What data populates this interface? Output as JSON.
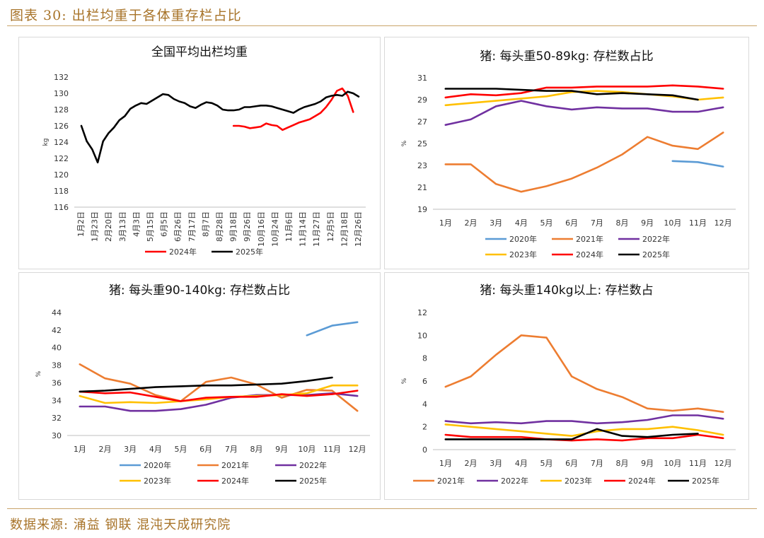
{
  "figure_title": "图表 30:  出栏均重于各体重存栏占比",
  "source": "数据来源:  涌益  钢联  混沌天成研究院",
  "colors": {
    "2020年": "#5b9bd5",
    "2021年": "#ed7d31",
    "2022年": "#7030a0",
    "2023年": "#ffc000",
    "2024年": "#ff0000",
    "2025年": "#000000"
  },
  "chart_data": [
    {
      "id": "chart1",
      "type": "line",
      "title": "全国平均出栏均重",
      "ylabel": "kg",
      "ylim": [
        116,
        132
      ],
      "yticks": [
        116,
        118,
        120,
        122,
        124,
        126,
        128,
        130,
        132
      ],
      "x_count": 52,
      "x_labels": [
        "1月2日",
        "1月23日",
        "2月20日",
        "3月13日",
        "4月3日",
        "5月15日",
        "6月5日",
        "6月26日",
        "7月17日",
        "8月7日",
        "8月28日",
        "9月18日",
        "9月26日",
        "10月16日",
        "10月24日",
        "11月6日",
        "11月14日",
        "11月27日",
        "12月5日",
        "12月18日",
        "12月26日"
      ],
      "x_label_positions": [
        0,
        2.55,
        5.1,
        7.65,
        10.2,
        12.75,
        15.3,
        17.85,
        20.4,
        22.95,
        25.5,
        28.05,
        30.6,
        33.15,
        35.7,
        38.25,
        40.8,
        43.35,
        45.9,
        48.45,
        51
      ],
      "series": [
        {
          "name": "2024年",
          "x_start": 28,
          "values": [
            126.0,
            126.0,
            125.9,
            125.7,
            125.8,
            125.9,
            126.3,
            126.1,
            126.0,
            125.5,
            125.8,
            126.1,
            126.4,
            126.6,
            126.8,
            127.2,
            127.6,
            128.3,
            129.2,
            130.3,
            130.6,
            129.7,
            127.7
          ]
        },
        {
          "name": "2025年",
          "x_start": 0,
          "values": [
            126.0,
            124.1,
            123.1,
            121.5,
            124.1,
            125.1,
            125.8,
            126.7,
            127.2,
            128.1,
            128.5,
            128.8,
            128.7,
            129.1,
            129.5,
            129.9,
            129.8,
            129.3,
            129.0,
            128.8,
            128.4,
            128.2,
            128.6,
            128.9,
            128.8,
            128.5,
            128.0,
            127.9,
            127.9,
            128.0,
            128.3,
            128.3,
            128.4,
            128.5,
            128.5,
            128.4,
            128.2,
            128.0,
            127.8,
            127.6,
            128.0,
            128.3,
            128.5,
            128.7,
            129.0,
            129.5,
            129.7,
            129.8,
            129.7,
            130.2,
            130.0,
            129.6
          ]
        }
      ],
      "legend": [
        "2024年",
        "2025年"
      ]
    },
    {
      "id": "chart2",
      "type": "line",
      "title": "猪:  每头重50-89kg:  存栏数占比",
      "ylabel": "%",
      "ylim": [
        19,
        31
      ],
      "yticks": [
        19,
        21,
        23,
        25,
        27,
        29,
        31
      ],
      "categories": [
        "1月",
        "2月",
        "3月",
        "4月",
        "5月",
        "6月",
        "7月",
        "8月",
        "9月",
        "10月",
        "11月",
        "12月"
      ],
      "series": [
        {
          "name": "2020年",
          "values": [
            null,
            null,
            null,
            null,
            null,
            null,
            null,
            null,
            null,
            23.4,
            23.3,
            22.9
          ]
        },
        {
          "name": "2021年",
          "values": [
            23.1,
            23.1,
            21.3,
            20.6,
            21.1,
            21.8,
            22.8,
            24.0,
            25.6,
            24.8,
            24.5,
            26.0
          ]
        },
        {
          "name": "2022年",
          "values": [
            26.7,
            27.2,
            28.4,
            28.9,
            28.4,
            28.1,
            28.3,
            28.2,
            28.2,
            27.9,
            27.9,
            28.3
          ]
        },
        {
          "name": "2023年",
          "values": [
            28.5,
            28.7,
            28.9,
            29.1,
            29.3,
            29.7,
            29.8,
            29.7,
            29.5,
            29.3,
            29.0,
            29.2
          ]
        },
        {
          "name": "2024年",
          "values": [
            29.2,
            29.5,
            29.4,
            29.6,
            30.1,
            30.1,
            30.2,
            30.2,
            30.2,
            30.3,
            30.2,
            30.0
          ]
        },
        {
          "name": "2025年",
          "values": [
            30.0,
            30.0,
            30.0,
            29.9,
            29.8,
            29.8,
            29.5,
            29.6,
            29.5,
            29.4,
            29.0,
            null
          ]
        }
      ],
      "legend": [
        "2020年",
        "2021年",
        "2022年",
        "2023年",
        "2024年",
        "2025年"
      ]
    },
    {
      "id": "chart3",
      "type": "line",
      "title": "猪:  每头重90-140kg:  存栏数占比",
      "ylabel": "%",
      "ylim": [
        30,
        44
      ],
      "yticks": [
        30,
        32,
        34,
        36,
        38,
        40,
        42,
        44
      ],
      "categories": [
        "1月",
        "2月",
        "3月",
        "4月",
        "5月",
        "6月",
        "7月",
        "8月",
        "9月",
        "10月",
        "11月",
        "12月"
      ],
      "series": [
        {
          "name": "2020年",
          "values": [
            null,
            null,
            null,
            null,
            null,
            null,
            null,
            null,
            null,
            41.4,
            42.5,
            42.9
          ]
        },
        {
          "name": "2021年",
          "values": [
            38.1,
            36.5,
            35.9,
            34.6,
            33.9,
            36.1,
            36.6,
            35.8,
            34.3,
            35.2,
            35.1,
            32.8
          ]
        },
        {
          "name": "2022年",
          "values": [
            33.3,
            33.3,
            32.8,
            32.8,
            33.0,
            33.5,
            34.3,
            34.6,
            34.6,
            34.6,
            34.8,
            34.5
          ]
        },
        {
          "name": "2023年",
          "values": [
            34.5,
            33.7,
            33.8,
            33.7,
            33.9,
            34.1,
            34.4,
            34.5,
            34.6,
            34.8,
            35.7,
            35.7
          ]
        },
        {
          "name": "2024年",
          "values": [
            35.0,
            34.8,
            34.9,
            34.4,
            33.9,
            34.3,
            34.4,
            34.4,
            34.7,
            34.5,
            34.7,
            35.1
          ]
        },
        {
          "name": "2025年",
          "values": [
            35.0,
            35.1,
            35.3,
            35.5,
            35.6,
            35.7,
            35.7,
            35.8,
            35.9,
            36.2,
            36.6,
            null
          ]
        }
      ],
      "legend": [
        "2020年",
        "2021年",
        "2022年",
        "2023年",
        "2024年",
        "2025年"
      ]
    },
    {
      "id": "chart4",
      "type": "line",
      "title": "猪:  每头重140kg以上:  存栏数占",
      "ylabel": "%",
      "ylim": [
        0,
        12
      ],
      "yticks": [
        0,
        2,
        4,
        6,
        8,
        10,
        12
      ],
      "categories": [
        "1月",
        "2月",
        "3月",
        "4月",
        "5月",
        "6月",
        "7月",
        "8月",
        "9月",
        "10月",
        "11月",
        "12月"
      ],
      "series": [
        {
          "name": "2021年",
          "values": [
            5.5,
            6.4,
            8.3,
            10.0,
            9.8,
            6.4,
            5.3,
            4.6,
            3.6,
            3.4,
            3.6,
            3.3
          ]
        },
        {
          "name": "2022年",
          "values": [
            2.5,
            2.3,
            2.4,
            2.3,
            2.5,
            2.5,
            2.3,
            2.4,
            2.6,
            3.0,
            3.0,
            2.7
          ]
        },
        {
          "name": "2023年",
          "values": [
            2.2,
            2.0,
            1.8,
            1.6,
            1.4,
            1.2,
            1.6,
            1.8,
            1.8,
            2.0,
            1.7,
            1.3
          ]
        },
        {
          "name": "2024年",
          "values": [
            1.3,
            1.1,
            1.1,
            1.1,
            0.9,
            0.8,
            0.9,
            0.8,
            1.0,
            1.0,
            1.3,
            1.0
          ]
        },
        {
          "name": "2025年",
          "values": [
            0.9,
            0.9,
            0.9,
            0.9,
            0.9,
            0.9,
            1.8,
            1.2,
            1.1,
            1.3,
            1.4,
            null
          ]
        }
      ],
      "legend": [
        "2021年",
        "2022年",
        "2023年",
        "2024年",
        "2025年"
      ]
    }
  ]
}
